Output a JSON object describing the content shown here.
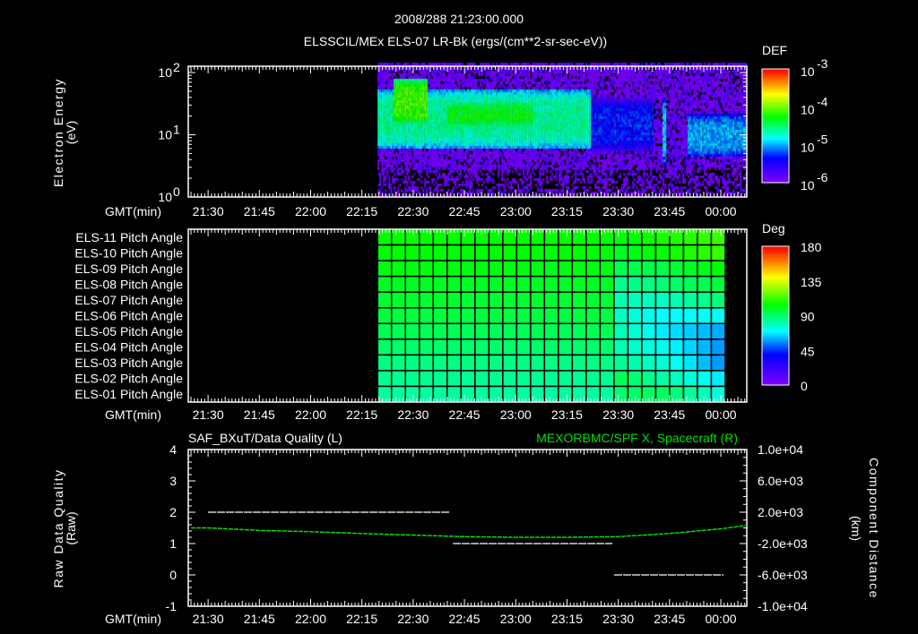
{
  "header": {
    "timestamp": "2008/288 21:23:00.000",
    "title": "ELSSCIL/MEx ELS-07 LR-Bk  (ergs/(cm**2-sr-sec-eV))"
  },
  "time_axis": {
    "label": "GMT(min)",
    "start_min": 24.2,
    "end_min": 187.6,
    "ticks": [
      {
        "min": 30,
        "label": "21:30"
      },
      {
        "min": 45,
        "label": "21:45"
      },
      {
        "min": 60,
        "label": "22:00"
      },
      {
        "min": 75,
        "label": "22:15"
      },
      {
        "min": 90,
        "label": "22:30"
      },
      {
        "min": 105,
        "label": "22:45"
      },
      {
        "min": 120,
        "label": "23:00"
      },
      {
        "min": 135,
        "label": "23:15"
      },
      {
        "min": 150,
        "label": "23:30"
      },
      {
        "min": 165,
        "label": "23:45"
      },
      {
        "min": 180,
        "label": "00:00"
      }
    ]
  },
  "chart_data": [
    {
      "type": "heatmap",
      "name": "electron-spectrogram",
      "ylabel": "Electron Energy",
      "yunit": "(eV)",
      "yscale": "log",
      "ylim_log10": [
        0,
        2.1
      ],
      "yticks": [
        {
          "exp": "0",
          "label": "10"
        },
        {
          "exp": "1",
          "label": "10"
        },
        {
          "exp": "2",
          "label": "10"
        }
      ],
      "data_start_min": 79.6,
      "colorbar": {
        "title": "DEF",
        "log10_range": [
          -6,
          -3
        ],
        "labels": [
          {
            "v": -3,
            "exp": "-3"
          },
          {
            "v": -4,
            "exp": "-4"
          },
          {
            "v": -5,
            "exp": "-5"
          },
          {
            "v": -6,
            "exp": "-6"
          }
        ],
        "base": "10"
      },
      "background_log_def": -6.0,
      "bands": [
        {
          "t_start": 79.6,
          "t_end": 142,
          "logE_low": 0.8,
          "logE_high": 1.75,
          "log_def": -4.6
        },
        {
          "t_start": 84,
          "t_end": 94,
          "logE_low": 1.2,
          "logE_high": 1.9,
          "log_def": -4.1
        },
        {
          "t_start": 100,
          "t_end": 125,
          "logE_low": 1.15,
          "logE_high": 1.55,
          "log_def": -4.3
        },
        {
          "t_start": 142,
          "t_end": 160,
          "logE_low": 0.75,
          "logE_high": 1.6,
          "log_def": -5.3
        },
        {
          "t_start": 162.5,
          "t_end": 164,
          "logE_low": 0.55,
          "logE_high": 1.6,
          "log_def": -4.9
        },
        {
          "t_start": 170,
          "t_end": 187.6,
          "logE_low": 0.65,
          "logE_high": 1.35,
          "log_def": -5.0
        }
      ]
    },
    {
      "type": "heatmap",
      "name": "pitch-angle-grid",
      "rows": [
        "ELS-11 Pitch Angle",
        "ELS-10 Pitch Angle",
        "ELS-09 Pitch Angle",
        "ELS-08 Pitch Angle",
        "ELS-07 Pitch Angle",
        "ELS-06 Pitch Angle",
        "ELS-05 Pitch Angle",
        "ELS-04 Pitch Angle",
        "ELS-03 Pitch Angle",
        "ELS-02 Pitch Angle",
        "ELS-01 Pitch Angle"
      ],
      "columns": 25,
      "t_start": 79.6,
      "t_end": 181.3,
      "knot_columns": [
        0,
        16,
        17,
        20,
        24
      ],
      "values_deg": [
        [
          105,
          105,
          103,
          108,
          112
        ],
        [
          104,
          104,
          100,
          105,
          112
        ],
        [
          102,
          102,
          93,
          95,
          104
        ],
        [
          100,
          100,
          85,
          88,
          96
        ],
        [
          98,
          98,
          80,
          78,
          88
        ],
        [
          96,
          96,
          78,
          70,
          72
        ],
        [
          93,
          93,
          80,
          68,
          60
        ],
        [
          90,
          90,
          80,
          72,
          58
        ],
        [
          87,
          87,
          84,
          76,
          58
        ],
        [
          85,
          85,
          92,
          82,
          68
        ],
        [
          83,
          83,
          90,
          92,
          75
        ]
      ],
      "colorbar": {
        "title": "Deg",
        "range": [
          0,
          180
        ],
        "labels": [
          "180",
          "135",
          "90",
          "45",
          "0"
        ],
        "values": [
          180,
          135,
          90,
          45,
          0
        ]
      }
    },
    {
      "type": "line",
      "name": "quality-and-distance",
      "title_left": "SAF_BXuT/Data Quality (L)",
      "title_right": "MEXORBMC/SPF X, Spacecraft (R)",
      "ylabel_left": "Raw Data Quality",
      "yunit_left": "(Raw)",
      "ylabel_right": "Component Distance",
      "yunit_right": "(km)",
      "ylim_left": [
        -1,
        4
      ],
      "yticks_left": [
        "4",
        "3",
        "2",
        "1",
        "0",
        "-1"
      ],
      "ylim_right": [
        -10000,
        10000
      ],
      "yticks_right": [
        "1.0e+04",
        "6.0e+03",
        "2.0e+03",
        "-2.0e+03",
        "-6.0e+03",
        "-1.0e+04"
      ],
      "quality_segments": [
        {
          "t_start": 30,
          "t_end": 100.8,
          "value": 2
        },
        {
          "t_start": 101.6,
          "t_end": 148.3,
          "value": 1
        },
        {
          "t_start": 148.8,
          "t_end": 180.8,
          "value": 0
        }
      ],
      "distance_series": {
        "color": "#00e000",
        "t": [
          25,
          30,
          45,
          60,
          75,
          90,
          105,
          120,
          135,
          150,
          165,
          180,
          187.6
        ],
        "km": [
          0,
          0,
          -320,
          -480,
          -720,
          -920,
          -1120,
          -1200,
          -1200,
          -1120,
          -720,
          -120,
          320
        ]
      }
    }
  ]
}
